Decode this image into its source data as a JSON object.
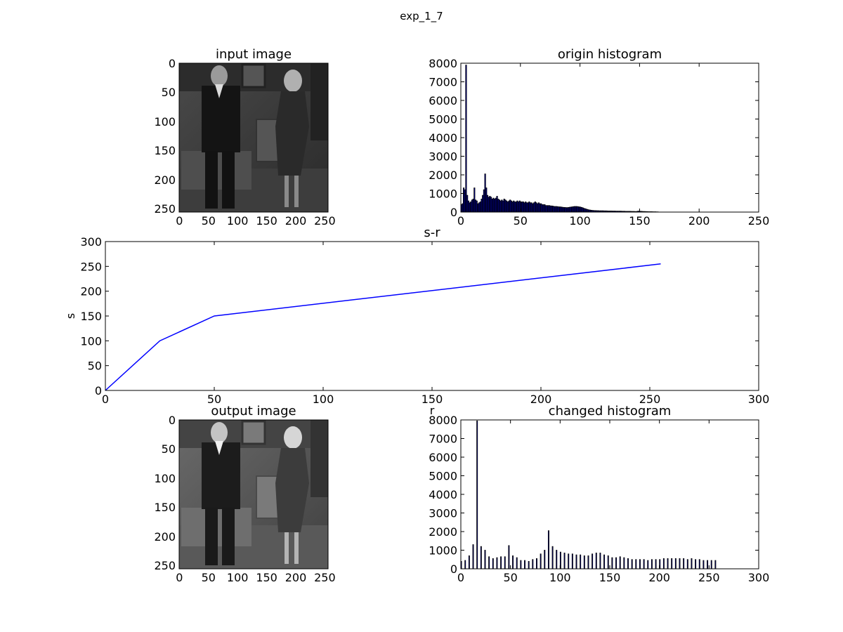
{
  "figure": {
    "title": "exp_1_7"
  },
  "images": [
    {
      "title": "input image",
      "depicts": "grayscale movie still of a man in a dark suit and a woman in a dark dress standing in a room",
      "xticks": [
        "0",
        "50",
        "100",
        "150",
        "200",
        "250"
      ],
      "yticks": [
        "0",
        "50",
        "100",
        "150",
        "200",
        "250"
      ]
    },
    {
      "title": "output image",
      "depicts": "same grayscale still after piecewise-linear contrast stretching (brighter)",
      "xticks": [
        "0",
        "50",
        "100",
        "150",
        "200",
        "250"
      ],
      "yticks": [
        "0",
        "50",
        "100",
        "150",
        "200",
        "250"
      ]
    }
  ],
  "colors": {
    "line": "#0000ff",
    "bar_edge": "#000000",
    "bar_fill": "#0000bf"
  },
  "chart_data": [
    {
      "id": "origin",
      "type": "bar",
      "title": "origin histogram",
      "xlabel": "",
      "ylabel": "",
      "xlim": [
        0,
        250
      ],
      "ylim": [
        0,
        8000
      ],
      "xticks": [
        0,
        50,
        100,
        150,
        200,
        250
      ],
      "yticks": [
        0,
        1000,
        2000,
        3000,
        4000,
        5000,
        6000,
        7000,
        8000
      ],
      "grid": false,
      "x": [
        0,
        1,
        2,
        3,
        4,
        5,
        6,
        7,
        8,
        9,
        10,
        11,
        12,
        13,
        14,
        15,
        16,
        17,
        18,
        19,
        20,
        21,
        22,
        23,
        24,
        25,
        26,
        27,
        28,
        29,
        30,
        31,
        32,
        33,
        34,
        35,
        36,
        37,
        38,
        39,
        40,
        41,
        42,
        43,
        44,
        45,
        46,
        47,
        48,
        49,
        50,
        51,
        52,
        53,
        54,
        55,
        56,
        57,
        58,
        59,
        60,
        61,
        62,
        63,
        64,
        65,
        66,
        67,
        68,
        69,
        70,
        71,
        72,
        73,
        74,
        75,
        76,
        77,
        78,
        79,
        80,
        81,
        82,
        83,
        84,
        85,
        86,
        87,
        88,
        89,
        90,
        91,
        92,
        93,
        94,
        95,
        96,
        97,
        98,
        99,
        100,
        101,
        102,
        103,
        104,
        105,
        106,
        107,
        108,
        109,
        110,
        111,
        112,
        113,
        114,
        115,
        116,
        117,
        118,
        119,
        120,
        121,
        122,
        123,
        124,
        125,
        126,
        127,
        128,
        129,
        130,
        131,
        132,
        133,
        134,
        135,
        136,
        137,
        138,
        139,
        140,
        141,
        142,
        143,
        144,
        145,
        146,
        147,
        148,
        149,
        150,
        151,
        152,
        153,
        154,
        155,
        156,
        157,
        158,
        159,
        160,
        161,
        162,
        163,
        164,
        165
      ],
      "values": [
        400,
        450,
        1300,
        1200,
        7900,
        900,
        600,
        500,
        550,
        650,
        700,
        1300,
        650,
        600,
        450,
        500,
        550,
        700,
        900,
        1200,
        2050,
        1300,
        900,
        800,
        850,
        800,
        700,
        750,
        700,
        750,
        850,
        700,
        650,
        600,
        650,
        600,
        700,
        650,
        600,
        550,
        600,
        650,
        600,
        550,
        600,
        550,
        550,
        600,
        550,
        600,
        550,
        550,
        550,
        500,
        550,
        500,
        500,
        550,
        500,
        500,
        450,
        500,
        550,
        500,
        450,
        500,
        450,
        450,
        400,
        400,
        400,
        350,
        350,
        350,
        350,
        330,
        330,
        320,
        300,
        300,
        300,
        290,
        280,
        280,
        270,
        260,
        250,
        250,
        240,
        240,
        250,
        260,
        270,
        280,
        290,
        300,
        300,
        300,
        290,
        280,
        270,
        250,
        230,
        200,
        180,
        160,
        140,
        120,
        110,
        100,
        90,
        85,
        80,
        80,
        75,
        75,
        70,
        70,
        70,
        70,
        65,
        65,
        65,
        60,
        60,
        60,
        60,
        55,
        55,
        55,
        50,
        50,
        50,
        50,
        50,
        45,
        45,
        45,
        40,
        40,
        40,
        40,
        40,
        35,
        35,
        35,
        30,
        30,
        45,
        50,
        45,
        40,
        35,
        30,
        30,
        25,
        25,
        20,
        20,
        20,
        20,
        15,
        15,
        15,
        10,
        10
      ]
    },
    {
      "id": "sr",
      "type": "line",
      "title": "s-r",
      "xlabel": "r",
      "ylabel": "s",
      "xlim": [
        0,
        300
      ],
      "ylim": [
        0,
        300
      ],
      "xticks": [
        0,
        50,
        100,
        150,
        200,
        250,
        300
      ],
      "yticks": [
        0,
        50,
        100,
        150,
        200,
        250,
        300
      ],
      "grid": false,
      "x": [
        0,
        25,
        50,
        255
      ],
      "y": [
        0,
        100,
        150,
        255
      ]
    },
    {
      "id": "changed",
      "type": "bar",
      "title": "changed histogram",
      "xlabel": "",
      "ylabel": "",
      "xlim": [
        0,
        300
      ],
      "ylim": [
        0,
        8000
      ],
      "xticks": [
        0,
        50,
        100,
        150,
        200,
        250,
        300
      ],
      "yticks": [
        0,
        1000,
        2000,
        3000,
        4000,
        5000,
        6000,
        7000,
        8000
      ],
      "grid": false,
      "x": [
        0,
        4,
        8,
        12,
        16,
        20,
        24,
        28,
        32,
        36,
        40,
        44,
        48,
        52,
        56,
        60,
        64,
        68,
        72,
        76,
        80,
        84,
        88,
        92,
        96,
        100,
        104,
        108,
        112,
        116,
        120,
        124,
        128,
        132,
        136,
        140,
        144,
        148,
        152,
        156,
        160,
        164,
        168,
        172,
        176,
        180,
        184,
        188,
        192,
        196,
        200,
        204,
        208,
        212,
        216,
        220,
        224,
        228,
        232,
        236,
        240,
        244,
        248,
        252,
        256
      ],
      "values": [
        400,
        450,
        700,
        1300,
        7950,
        1200,
        1000,
        650,
        550,
        600,
        650,
        650,
        1250,
        700,
        600,
        450,
        450,
        400,
        500,
        550,
        800,
        1000,
        2050,
        1200,
        1000,
        900,
        850,
        800,
        800,
        750,
        750,
        700,
        700,
        800,
        850,
        850,
        750,
        700,
        600,
        600,
        650,
        600,
        550,
        500,
        500,
        500,
        500,
        450,
        500,
        500,
        500,
        550,
        550,
        550,
        550,
        550,
        550,
        500,
        550,
        500,
        500,
        450,
        450,
        450,
        450
      ]
    }
  ]
}
